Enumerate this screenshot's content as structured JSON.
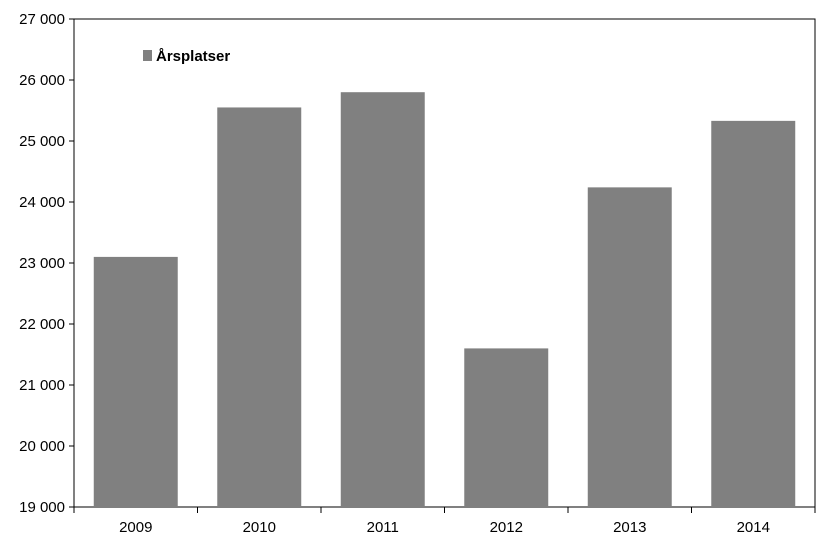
{
  "chart_data": {
    "type": "bar",
    "categories": [
      "2009",
      "2010",
      "2011",
      "2012",
      "2013",
      "2014"
    ],
    "series": [
      {
        "name": "Årsplatser",
        "values": [
          23100,
          25550,
          25800,
          21600,
          24240,
          25330
        ],
        "color": "#808080"
      }
    ],
    "ylim": [
      19000,
      27000
    ],
    "yticks": [
      19000,
      20000,
      21000,
      22000,
      23000,
      24000,
      25000,
      26000,
      27000
    ],
    "ytick_labels": [
      "19 000",
      "20 000",
      "21 000",
      "22 000",
      "23 000",
      "24 000",
      "25 000",
      "26 000",
      "27 000"
    ],
    "grid": false,
    "legend_position": "top-left",
    "xlabel": "",
    "ylabel": "",
    "title": ""
  }
}
